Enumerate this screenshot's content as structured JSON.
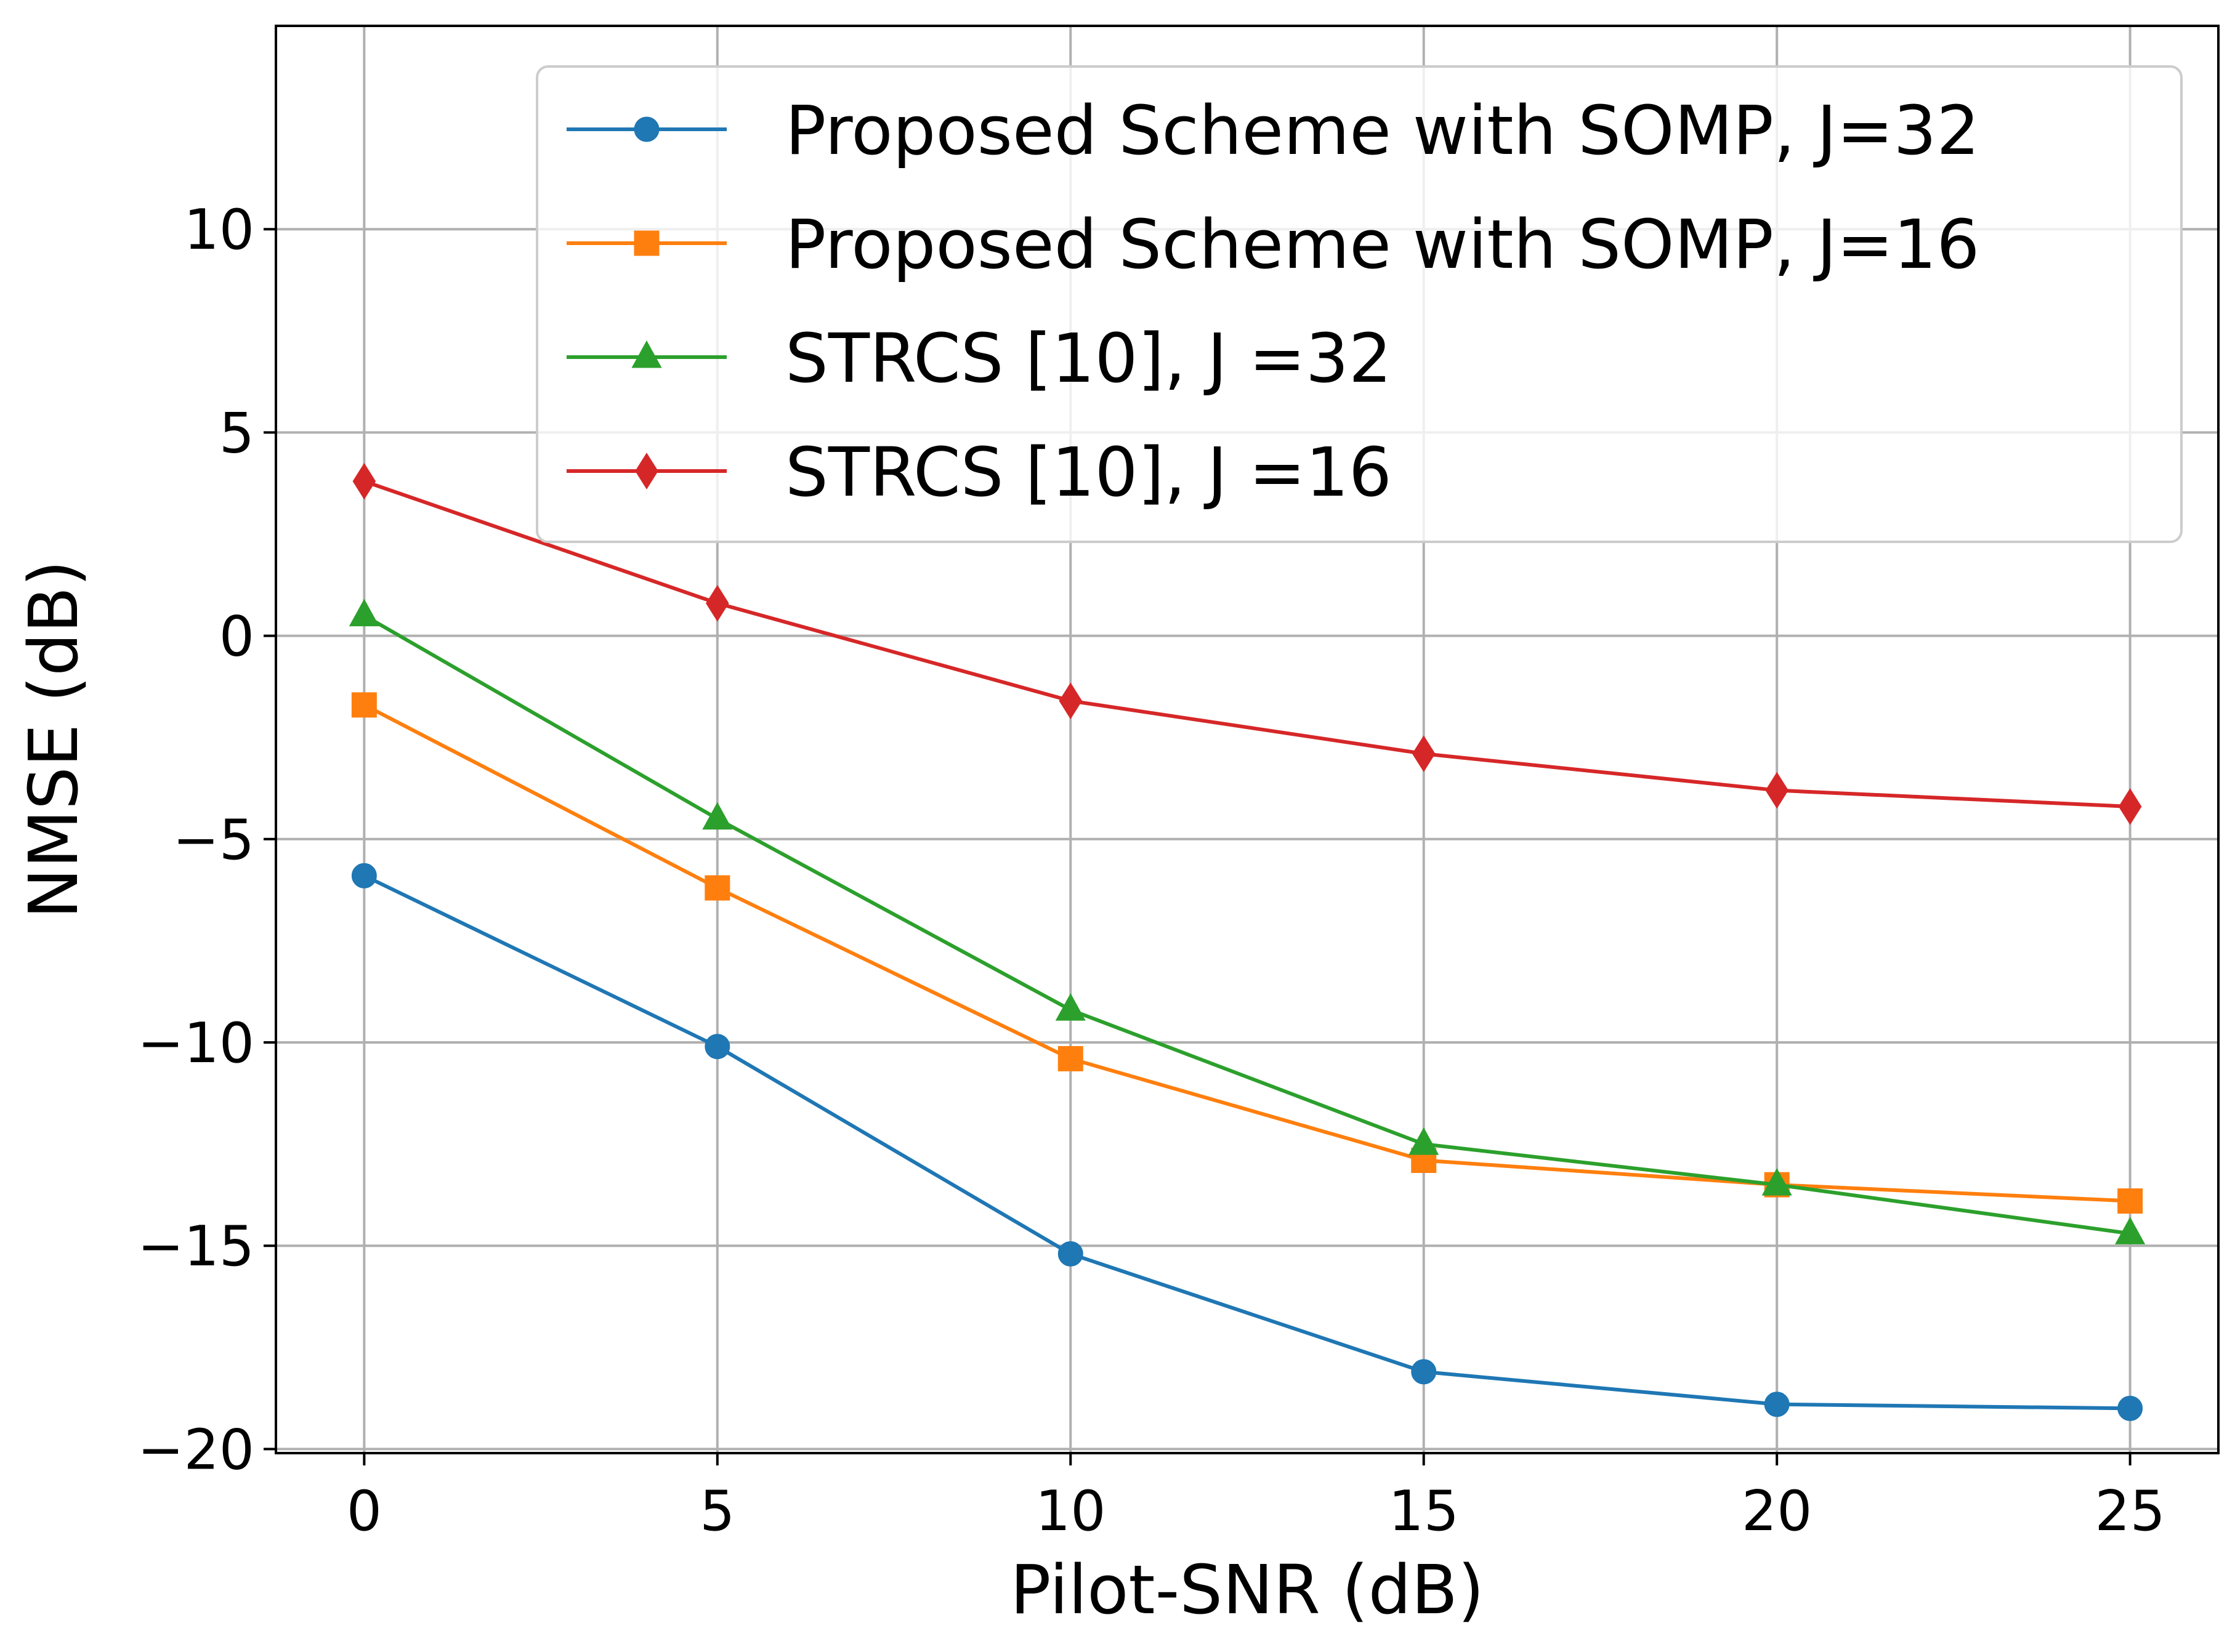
{
  "chart_data": {
    "type": "line",
    "xlabel": "Pilot-SNR (dB)",
    "ylabel": "NMSE (dB)",
    "x": [
      0,
      5,
      10,
      15,
      20,
      25
    ],
    "xlim": [
      -1.25,
      26.25
    ],
    "ylim": [
      -20.1,
      15.0
    ],
    "xticks": [
      0,
      5,
      10,
      15,
      20,
      25
    ],
    "yticks": [
      -20,
      -15,
      -10,
      -5,
      0,
      5,
      10
    ],
    "xtick_labels": [
      "0",
      "5",
      "10",
      "15",
      "20",
      "25"
    ],
    "ytick_labels": [
      "−20",
      "−15",
      "−10",
      "−5",
      "0",
      "5",
      "10"
    ],
    "grid": true,
    "legend_position": "top-right",
    "series": [
      {
        "name": "Proposed Scheme with SOMP, J=32",
        "color": "#1f77b4",
        "marker": "circle",
        "values": [
          -5.9,
          -10.1,
          -15.2,
          -18.1,
          -18.9,
          -19.0
        ]
      },
      {
        "name": "Proposed Scheme with SOMP, J=16",
        "color": "#ff7f0e",
        "marker": "square",
        "values": [
          -1.7,
          -6.2,
          -10.4,
          -12.9,
          -13.5,
          -13.9
        ]
      },
      {
        "name": "STRCS [10], J =32",
        "color": "#2ca02c",
        "marker": "triangle",
        "values": [
          0.5,
          -4.5,
          -9.2,
          -12.5,
          -13.5,
          -14.7
        ]
      },
      {
        "name": "STRCS [10], J =16",
        "color": "#d62728",
        "marker": "diamond",
        "values": [
          3.8,
          0.8,
          -1.6,
          -2.9,
          -3.8,
          -4.2
        ]
      }
    ]
  }
}
